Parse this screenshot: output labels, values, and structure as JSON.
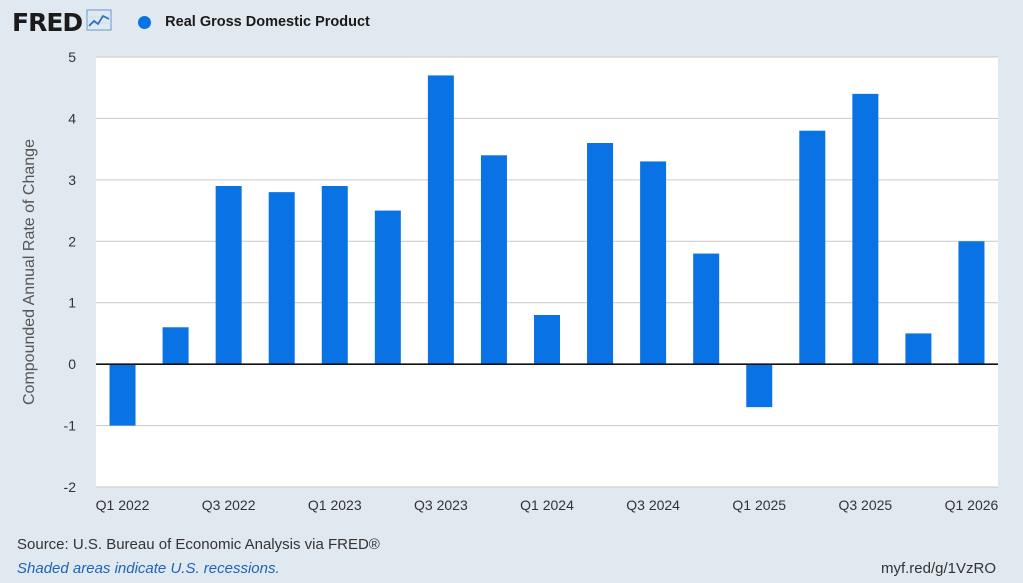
{
  "header": {
    "logo_text": "FRED",
    "logo_mark": "trend-line-icon",
    "legend": [
      {
        "label": "Real Gross Domestic Product",
        "color": "#0973e5"
      }
    ]
  },
  "chart_data": {
    "type": "bar",
    "categories": [
      "Q1 2022",
      "Q2 2022",
      "Q3 2022",
      "Q4 2022",
      "Q1 2023",
      "Q2 2023",
      "Q3 2023",
      "Q4 2023",
      "Q1 2024",
      "Q2 2024",
      "Q3 2024",
      "Q4 2024",
      "Q1 2025",
      "Q2 2025",
      "Q3 2025",
      "Q4 2025",
      "Q1 2026"
    ],
    "series": [
      {
        "name": "Real Gross Domestic Product",
        "values": [
          -1.0,
          0.6,
          2.9,
          2.8,
          2.9,
          2.5,
          4.7,
          3.4,
          0.8,
          3.6,
          3.3,
          1.8,
          -0.7,
          3.8,
          4.4,
          0.5,
          2.0
        ],
        "color": "#0973e5"
      }
    ],
    "ylabel": "Compounded Annual Rate of Change",
    "ylim": [
      -2,
      5
    ],
    "yticks": [
      -2,
      -1,
      0,
      1,
      2,
      3,
      4,
      5
    ],
    "xtick_labels": [
      "Q1 2022",
      "Q3 2022",
      "Q1 2023",
      "Q3 2023",
      "Q1 2024",
      "Q3 2024",
      "Q1 2025",
      "Q3 2025",
      "Q1 2026"
    ],
    "grid": true,
    "legend_position": "top-left"
  },
  "footer": {
    "source": "Source: U.S. Bureau of Economic Analysis via FRED®",
    "recession_note": "Shaded areas indicate U.S. recessions.",
    "short_url": "myf.red/g/1VzRO"
  }
}
